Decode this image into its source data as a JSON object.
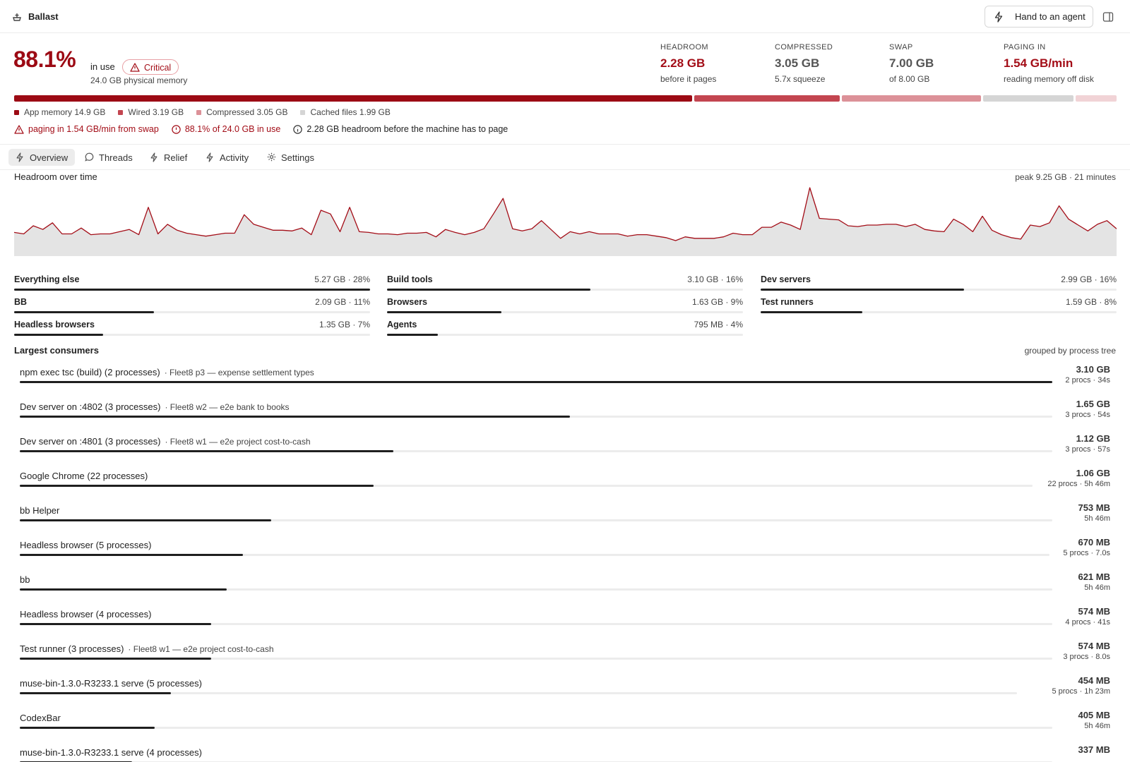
{
  "app": {
    "title": "Ballast",
    "hand_off_label": "Hand to an agent"
  },
  "summary": {
    "percent": "88.1%",
    "in_use_label": "in use",
    "status": "Critical",
    "physical": "24.0 GB physical memory"
  },
  "stats": [
    {
      "label": "HEADROOM",
      "value": "2.28 GB",
      "sub": "before it pages"
    },
    {
      "label": "COMPRESSED",
      "value": "3.05 GB",
      "sub": "5.7x squeeze"
    },
    {
      "label": "SWAP",
      "value": "7.00 GB",
      "sub": "of 8.00 GB"
    },
    {
      "label": "PAGING IN",
      "value": "1.54 GB/min",
      "sub": "reading memory off disk"
    }
  ],
  "memory_breakdown": [
    {
      "label": "App memory 14.9 GB",
      "gb": 14.9,
      "color": "#9c0a14"
    },
    {
      "label": "Wired 3.19 GB",
      "gb": 3.19,
      "color": "#c34550"
    },
    {
      "label": "Compressed 3.05 GB",
      "gb": 3.05,
      "color": "#dc9198"
    },
    {
      "label": "Cached files 1.99 GB",
      "gb": 1.99,
      "color": "#d5d5d5"
    },
    {
      "label": "",
      "gb": 0.9,
      "color": "#f1d3d6"
    }
  ],
  "alerts": [
    {
      "text": "paging in 1.54 GB/min from swap",
      "kind": "warn"
    },
    {
      "text": "88.1% of 24.0 GB in use",
      "kind": "error"
    },
    {
      "text": "2.28 GB headroom before the machine has to page",
      "kind": "info"
    }
  ],
  "tabs": [
    {
      "label": "Overview",
      "icon": "bolt-icon",
      "active": true
    },
    {
      "label": "Threads",
      "icon": "chat-icon",
      "active": false
    },
    {
      "label": "Relief",
      "icon": "bolt-icon",
      "active": false
    },
    {
      "label": "Activity",
      "icon": "bolt-icon",
      "active": false
    },
    {
      "label": "Settings",
      "icon": "gear-icon",
      "active": false
    }
  ],
  "headroom_chart": {
    "title": "Headroom over time",
    "peak": "peak 9.25 GB · 21 minutes",
    "max_gb": 9.25,
    "values": [
      3.2,
      3.0,
      4.1,
      3.6,
      4.5,
      3.0,
      3.0,
      3.8,
      2.9,
      3.0,
      3.0,
      3.3,
      3.6,
      2.9,
      6.6,
      3.0,
      4.3,
      3.5,
      3.1,
      2.9,
      2.7,
      2.9,
      3.1,
      3.1,
      5.6,
      4.3,
      3.9,
      3.5,
      3.5,
      3.4,
      3.8,
      2.9,
      6.2,
      5.7,
      3.3,
      6.6,
      3.3,
      3.2,
      3.0,
      3.0,
      2.9,
      3.1,
      3.1,
      3.2,
      2.6,
      3.6,
      3.2,
      2.9,
      3.2,
      3.7,
      5.7,
      7.8,
      3.7,
      3.4,
      3.7,
      4.8,
      3.6,
      2.4,
      3.3,
      3.0,
      3.3,
      3.0,
      3.0,
      3.0,
      2.7,
      2.9,
      2.9,
      2.7,
      2.5,
      2.1,
      2.6,
      2.4,
      2.4,
      2.4,
      2.6,
      3.1,
      2.9,
      2.9,
      3.9,
      3.9,
      4.6,
      4.2,
      3.6,
      9.25,
      5.1,
      5.0,
      4.9,
      4.1,
      4.0,
      4.2,
      4.2,
      4.3,
      4.3,
      4.0,
      4.3,
      3.6,
      3.4,
      3.3,
      5.0,
      4.3,
      3.3,
      5.4,
      3.5,
      2.9,
      2.5,
      2.3,
      4.2,
      4.0,
      4.5,
      6.8,
      5.0,
      4.2,
      3.4,
      4.3,
      4.8,
      3.7
    ]
  },
  "categories": [
    {
      "name": "Everything else",
      "value": "5.27 GB · 28%",
      "share": 0.28
    },
    {
      "name": "Build tools",
      "value": "3.10 GB · 16%",
      "share": 0.16
    },
    {
      "name": "Dev servers",
      "value": "2.99 GB · 16%",
      "share": 0.16
    },
    {
      "name": "BB",
      "value": "2.09 GB · 11%",
      "share": 0.11
    },
    {
      "name": "Browsers",
      "value": "1.63 GB · 9%",
      "share": 0.09
    },
    {
      "name": "Test runners",
      "value": "1.59 GB · 8%",
      "share": 0.08
    },
    {
      "name": "Headless browsers",
      "value": "1.35 GB · 7%",
      "share": 0.07
    },
    {
      "name": "Agents",
      "value": "795 MB · 4%",
      "share": 0.04
    }
  ],
  "consumers": {
    "title": "Largest consumers",
    "grouping": "grouped by process tree",
    "max_mb": 3100,
    "items": [
      {
        "name": "npm exec tsc (build) (2 processes)",
        "detail": "· Fleet8 p3 — expense settlement types",
        "size": "3.10 GB",
        "meta": "2 procs · 34s",
        "mb": 3100
      },
      {
        "name": "Dev server on :4802 (3 processes)",
        "detail": "· Fleet8 w2 — e2e bank to books",
        "size": "1.65 GB",
        "meta": "3 procs · 54s",
        "mb": 1650
      },
      {
        "name": "Dev server on :4801 (3 processes)",
        "detail": "· Fleet8 w1 — e2e project cost-to-cash",
        "size": "1.12 GB",
        "meta": "3 procs · 57s",
        "mb": 1120
      },
      {
        "name": "Google Chrome (22 processes)",
        "detail": "",
        "size": "1.06 GB",
        "meta": "22 procs · 5h 46m",
        "mb": 1060
      },
      {
        "name": "bb Helper",
        "detail": "",
        "size": "753 MB",
        "meta": "5h 46m",
        "mb": 753
      },
      {
        "name": "Headless browser (5 processes)",
        "detail": "",
        "size": "670 MB",
        "meta": "5 procs · 7.0s",
        "mb": 670
      },
      {
        "name": "bb",
        "detail": "",
        "size": "621 MB",
        "meta": "5h 46m",
        "mb": 621
      },
      {
        "name": "Headless browser (4 processes)",
        "detail": "",
        "size": "574 MB",
        "meta": "4 procs · 41s",
        "mb": 574
      },
      {
        "name": "Test runner (3 processes)",
        "detail": "· Fleet8 w1 — e2e project cost-to-cash",
        "size": "574 MB",
        "meta": "3 procs · 8.0s",
        "mb": 574
      },
      {
        "name": "muse-bin-1.3.0-R3233.1 serve (5 processes)",
        "detail": "",
        "size": "454 MB",
        "meta": "5 procs · 1h 23m",
        "mb": 454
      },
      {
        "name": "CodexBar",
        "detail": "",
        "size": "405 MB",
        "meta": "5h 46m",
        "mb": 405
      },
      {
        "name": "muse-bin-1.3.0-R3233.1 serve (4 processes)",
        "detail": "",
        "size": "337 MB",
        "meta": "",
        "mb": 337
      }
    ]
  },
  "colors": {
    "critical": "#9c0a14",
    "accent_text": "#a30d17",
    "bar": "#1f1f1f",
    "track": "#ececec",
    "chart_line": "#a30d17",
    "chart_fill": "#e4e4e4"
  }
}
